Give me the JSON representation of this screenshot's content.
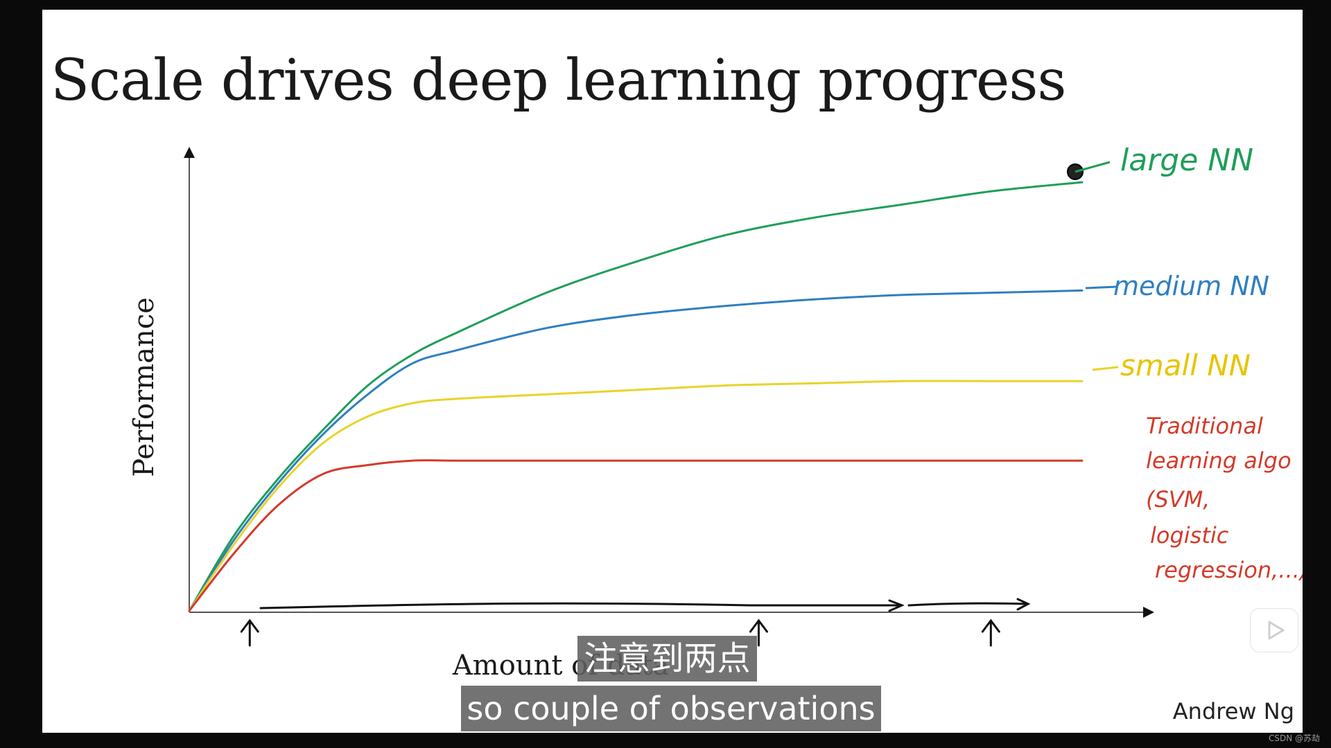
{
  "slide": {
    "title": "Scale drives deep learning progress",
    "author": "Andrew Ng"
  },
  "subtitles": {
    "chinese": "注意到两点",
    "english": "so couple of observations"
  },
  "watermark": "CSDN @苏劫",
  "icons": {
    "play": "play-icon"
  },
  "chart_data": {
    "type": "line",
    "title": "Scale drives deep learning progress",
    "xlabel": "Amount of data",
    "ylabel": "Performance",
    "xlim": [
      0,
      100
    ],
    "ylim": [
      0,
      100
    ],
    "grid": false,
    "legend": "inline labels at right end of each curve",
    "series": [
      {
        "key": "large",
        "label": "large NN",
        "color": "#1f9e5a",
        "points": [
          [
            0,
            0
          ],
          [
            5,
            17
          ],
          [
            10,
            30
          ],
          [
            15,
            41
          ],
          [
            20,
            51
          ],
          [
            25,
            58
          ],
          [
            30,
            63
          ],
          [
            40,
            72
          ],
          [
            50,
            79
          ],
          [
            60,
            85
          ],
          [
            70,
            89
          ],
          [
            80,
            92
          ],
          [
            90,
            95
          ],
          [
            100,
            97
          ]
        ]
      },
      {
        "key": "medium",
        "label": "medium NN",
        "color": "#2f7fc1",
        "points": [
          [
            0,
            0
          ],
          [
            5,
            16
          ],
          [
            10,
            29
          ],
          [
            15,
            40
          ],
          [
            20,
            49
          ],
          [
            25,
            56
          ],
          [
            30,
            59
          ],
          [
            40,
            64
          ],
          [
            50,
            67
          ],
          [
            60,
            69
          ],
          [
            70,
            70.5
          ],
          [
            80,
            71.5
          ],
          [
            90,
            72
          ],
          [
            100,
            72.5
          ]
        ]
      },
      {
        "key": "small",
        "label": "small NN",
        "color": "#e8d32a",
        "points": [
          [
            0,
            0
          ],
          [
            5,
            15
          ],
          [
            10,
            28
          ],
          [
            15,
            38
          ],
          [
            20,
            44
          ],
          [
            25,
            47
          ],
          [
            30,
            48
          ],
          [
            40,
            49
          ],
          [
            50,
            50
          ],
          [
            60,
            51
          ],
          [
            70,
            51.5
          ],
          [
            80,
            52
          ],
          [
            90,
            52
          ],
          [
            100,
            52
          ]
        ]
      },
      {
        "key": "traditional",
        "label": "Traditional learning algo (SVM, logistic regression,...)",
        "color": "#d43a2a",
        "points": [
          [
            0,
            0
          ],
          [
            5,
            13
          ],
          [
            10,
            24
          ],
          [
            15,
            31
          ],
          [
            20,
            33
          ],
          [
            25,
            34
          ],
          [
            30,
            34
          ],
          [
            40,
            34
          ],
          [
            50,
            34
          ],
          [
            60,
            34
          ],
          [
            70,
            34
          ],
          [
            80,
            34
          ],
          [
            90,
            34
          ],
          [
            100,
            34
          ]
        ]
      }
    ],
    "annotations": {
      "arrows_up_at_x": [
        6,
        63,
        89
      ]
    }
  }
}
